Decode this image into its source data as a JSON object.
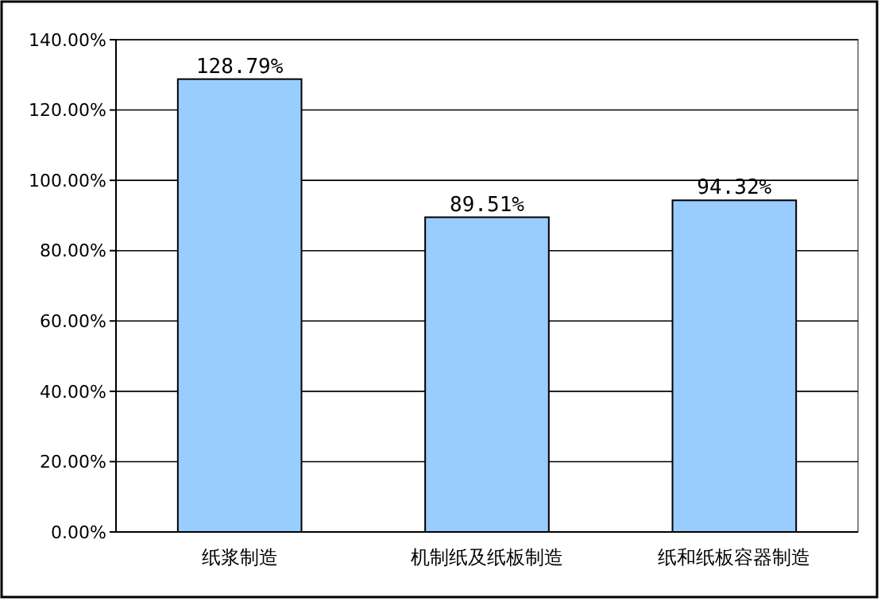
{
  "chart_data": {
    "type": "bar",
    "categories": [
      "纸浆制造",
      "机制纸及纸板制造",
      "纸和纸板容器制造"
    ],
    "values": [
      128.79,
      89.51,
      94.32
    ],
    "value_labels": [
      "128.79%",
      "89.51%",
      "94.32%"
    ],
    "color": "#99ccff",
    "ylim": [
      0,
      140
    ],
    "yticks": [
      {
        "value": 0,
        "label": "0.00%"
      },
      {
        "value": 20,
        "label": "20.00%"
      },
      {
        "value": 40,
        "label": "40.00%"
      },
      {
        "value": 60,
        "label": "60.00%"
      },
      {
        "value": 80,
        "label": "80.00%"
      },
      {
        "value": 100,
        "label": "100.00%"
      },
      {
        "value": 120,
        "label": "120.00%"
      },
      {
        "value": 140,
        "label": "140.00%"
      }
    ],
    "grid": true
  }
}
